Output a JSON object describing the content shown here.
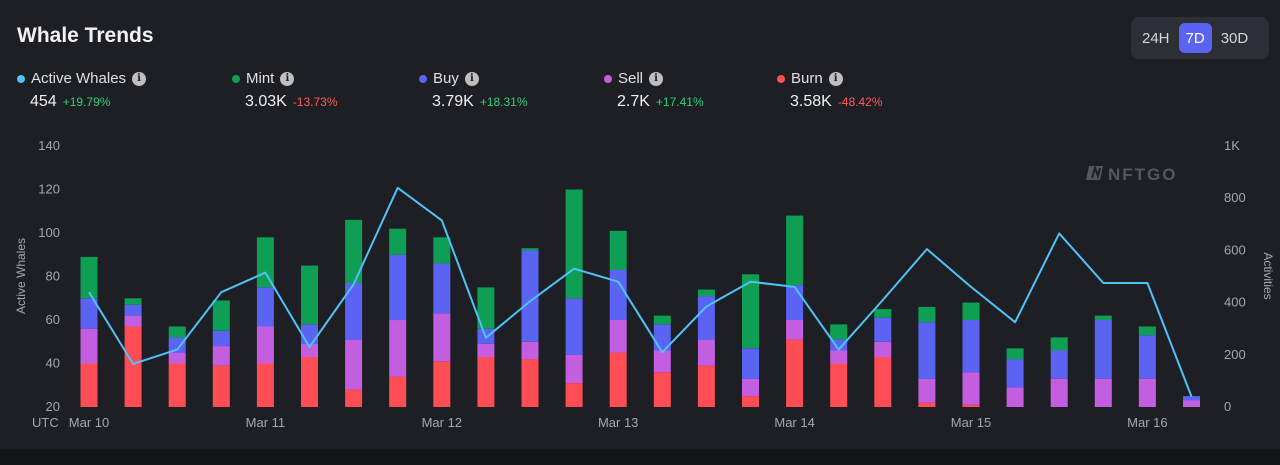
{
  "header": {
    "title": "Whale Trends"
  },
  "range": {
    "options": [
      "24H",
      "7D",
      "30D"
    ],
    "active": "7D"
  },
  "metrics": [
    {
      "label": "Active Whales",
      "value": "454",
      "change": "+19.79%",
      "color": "#4fc3f7",
      "changeColor": "#2bd17e"
    },
    {
      "label": "Mint",
      "value": "3.03K",
      "change": "-13.73%",
      "color": "#0e9f55",
      "changeColor": "#ff5b5b"
    },
    {
      "label": "Buy",
      "value": "3.79K",
      "change": "+18.31%",
      "color": "#5b63f2",
      "changeColor": "#2bd17e"
    },
    {
      "label": "Sell",
      "value": "2.7K",
      "change": "+17.41%",
      "color": "#c45ee0",
      "changeColor": "#2bd17e"
    },
    {
      "label": "Burn",
      "value": "3.58K",
      "change": "-48.42%",
      "color": "#ff4d55",
      "changeColor": "#ff5b5b"
    }
  ],
  "watermark": "NFTGO",
  "chart_data": {
    "type": "bar+line",
    "ylabel_left": "Active Whales",
    "ylabel_right": "Activities",
    "ylim_left": [
      20,
      140
    ],
    "ylim_right": [
      0,
      1000
    ],
    "yticks_left": [
      "140",
      "120",
      "100",
      "80",
      "60",
      "40",
      "20"
    ],
    "yticks_right": [
      "1K",
      "800",
      "600",
      "400",
      "200",
      "0"
    ],
    "timezone_label": "UTC",
    "xticks": [
      "Mar 10",
      "Mar 11",
      "Mar 12",
      "Mar 13",
      "Mar 14",
      "Mar 15",
      "Mar 16"
    ],
    "xtick_bar_index": [
      0,
      4,
      8,
      12,
      16,
      20,
      24
    ],
    "stack_order": [
      "Burn",
      "Sell",
      "Buy",
      "Mint"
    ],
    "series_colors": {
      "Burn": "#ff4d55",
      "Sell": "#c45ee0",
      "Buy": "#5b63f2",
      "Mint": "#0e9f55",
      "Active Whales": "#4fc3f7"
    },
    "bars": [
      {
        "Burn": 40,
        "Sell": 56,
        "Buy": 70,
        "Mint": 89
      },
      {
        "Burn": 57,
        "Sell": 62,
        "Buy": 67,
        "Mint": 70
      },
      {
        "Burn": 40,
        "Sell": 45,
        "Buy": 52,
        "Mint": 57
      },
      {
        "Burn": 39,
        "Sell": 48,
        "Buy": 55,
        "Mint": 69
      },
      {
        "Burn": 40,
        "Sell": 57,
        "Buy": 75,
        "Mint": 98
      },
      {
        "Burn": 43,
        "Sell": 49,
        "Buy": 58,
        "Mint": 85
      },
      {
        "Burn": 28,
        "Sell": 51,
        "Buy": 77,
        "Mint": 106
      },
      {
        "Burn": 34,
        "Sell": 60,
        "Buy": 90,
        "Mint": 102
      },
      {
        "Burn": 41,
        "Sell": 63,
        "Buy": 86,
        "Mint": 98
      },
      {
        "Burn": 43,
        "Sell": 49,
        "Buy": 56,
        "Mint": 75
      },
      {
        "Burn": 42,
        "Sell": 50,
        "Buy": 92,
        "Mint": 93
      },
      {
        "Burn": 31,
        "Sell": 44,
        "Buy": 70,
        "Mint": 120
      },
      {
        "Burn": 45,
        "Sell": 60,
        "Buy": 83,
        "Mint": 101
      },
      {
        "Burn": 36,
        "Sell": 46,
        "Buy": 58,
        "Mint": 62
      },
      {
        "Burn": 39,
        "Sell": 51,
        "Buy": 71,
        "Mint": 74
      },
      {
        "Burn": 25,
        "Sell": 33,
        "Buy": 47,
        "Mint": 81
      },
      {
        "Burn": 51,
        "Sell": 60,
        "Buy": 76,
        "Mint": 108
      },
      {
        "Burn": 40,
        "Sell": 46,
        "Buy": 51,
        "Mint": 58
      },
      {
        "Burn": 43,
        "Sell": 50,
        "Buy": 61,
        "Mint": 65
      },
      {
        "Burn": 22,
        "Sell": 33,
        "Buy": 59,
        "Mint": 66
      },
      {
        "Burn": 21,
        "Sell": 36,
        "Buy": 60,
        "Mint": 68
      },
      {
        "Burn": 20,
        "Sell": 29,
        "Buy": 42,
        "Mint": 47
      },
      {
        "Burn": 20,
        "Sell": 33,
        "Buy": 46,
        "Mint": 52
      },
      {
        "Burn": 20,
        "Sell": 33,
        "Buy": 60,
        "Mint": 62
      },
      {
        "Burn": 20,
        "Sell": 33,
        "Buy": 53,
        "Mint": 57
      },
      {
        "Burn": 20,
        "Sell": 23,
        "Buy": 25,
        "Mint": 25
      }
    ],
    "active_whales_line": [
      440,
      165,
      220,
      440,
      515,
      230,
      470,
      840,
      715,
      265,
      405,
      530,
      480,
      210,
      385,
      480,
      460,
      220,
      410,
      605,
      460,
      325,
      665,
      475,
      475,
      40
    ]
  }
}
